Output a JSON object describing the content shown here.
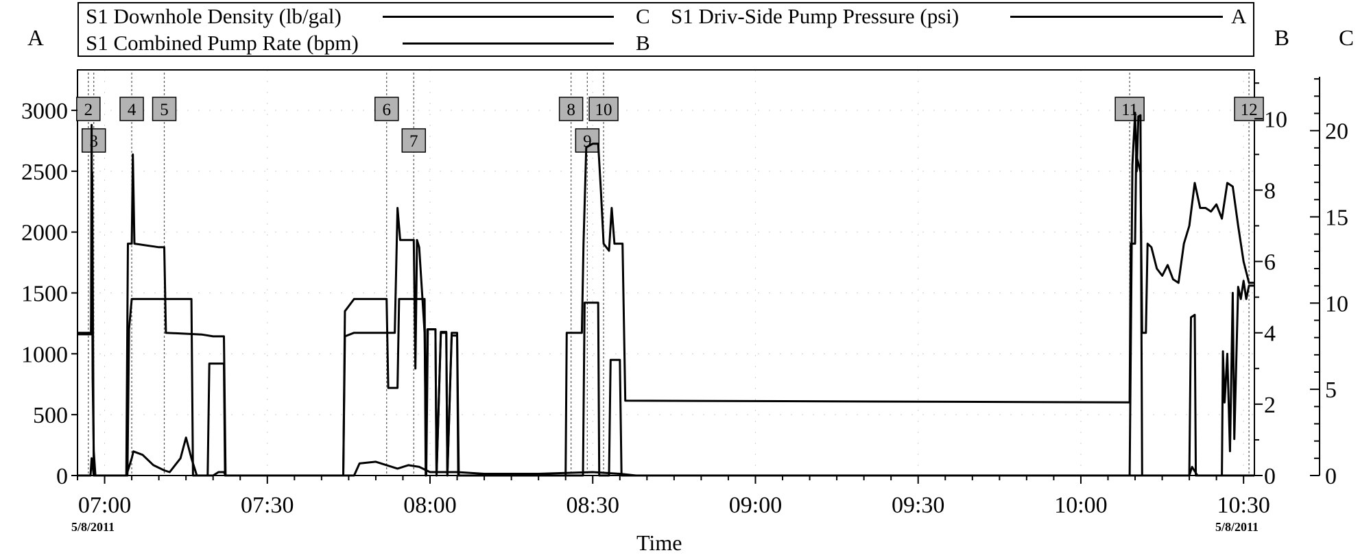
{
  "legend": {
    "items": [
      {
        "label": "S1 Downhole Density (lb/gal)",
        "axis": "C"
      },
      {
        "label": "S1 Combined Pump Rate (bpm)",
        "axis": "B"
      },
      {
        "label": "S1 Driv-Side Pump Pressure (psi)",
        "axis": "A"
      }
    ]
  },
  "axis_letters": {
    "left": "A",
    "right_b": "B",
    "right_c": "C"
  },
  "x_axis": {
    "title": "Time",
    "start_date": "5/8/2011",
    "end_date": "5/8/2011"
  },
  "chart_data": {
    "type": "line",
    "xlabel": "Time",
    "x_ticks": [
      "07:00",
      "07:30",
      "08:00",
      "08:30",
      "09:00",
      "09:30",
      "10:00",
      "10:30"
    ],
    "x_range": [
      "06:55",
      "10:32"
    ],
    "axes": {
      "A": {
        "ylim": [
          0,
          3400
        ],
        "ticks": [
          0,
          500,
          1000,
          1500,
          2000,
          2500,
          3000
        ]
      },
      "B": {
        "ylim": [
          0,
          11.6
        ],
        "ticks": [
          0,
          2,
          4,
          6,
          8,
          10
        ]
      },
      "C": {
        "ylim": [
          0,
          24
        ],
        "ticks": [
          0,
          5,
          10,
          15,
          20
        ]
      }
    },
    "markers": [
      {
        "label": "2",
        "time": "06:57"
      },
      {
        "label": "3",
        "time": "06:58"
      },
      {
        "label": "4",
        "time": "07:05"
      },
      {
        "label": "5",
        "time": "07:11"
      },
      {
        "label": "6",
        "time": "07:52"
      },
      {
        "label": "7",
        "time": "07:57"
      },
      {
        "label": "8",
        "time": "08:26"
      },
      {
        "label": "9",
        "time": "08:29"
      },
      {
        "label": "10",
        "time": "08:32"
      },
      {
        "label": "11",
        "time": "10:09"
      },
      {
        "label": "12",
        "time": "10:31"
      }
    ],
    "series": [
      {
        "name": "S1 Driv-Side Pump Pressure (psi)",
        "axis": "A",
        "points": [
          [
            "06:55",
            1160
          ],
          [
            "06:57.5",
            1160
          ],
          [
            "06:57.6",
            2880
          ],
          [
            "06:57.8",
            800
          ],
          [
            "06:58",
            200
          ],
          [
            "06:58.3",
            0
          ],
          [
            "07:04.2",
            0
          ],
          [
            "07:04.5",
            1200
          ],
          [
            "07:05",
            1450
          ],
          [
            "07:05.2",
            1450
          ],
          [
            "07:10",
            1450
          ],
          [
            "07:16",
            1450
          ],
          [
            "07:16.3",
            0
          ],
          [
            "07:19",
            0
          ],
          [
            "07:19.3",
            920
          ],
          [
            "07:22",
            920
          ],
          [
            "07:22.2",
            0
          ],
          [
            "07:44",
            0
          ],
          [
            "07:44.3",
            1350
          ],
          [
            "07:46",
            1450
          ],
          [
            "07:52",
            1450
          ],
          [
            "07:52.3",
            720
          ],
          [
            "07:54",
            720
          ],
          [
            "07:54.3",
            1450
          ],
          [
            "07:59",
            1450
          ],
          [
            "07:59.2",
            0
          ],
          [
            "07:59.5",
            1200
          ],
          [
            "08:01",
            1200
          ],
          [
            "08:01.2",
            0
          ],
          [
            "08:02",
            1180
          ],
          [
            "08:03",
            1180
          ],
          [
            "08:03.2",
            0
          ],
          [
            "08:04",
            1150
          ],
          [
            "08:05",
            1150
          ],
          [
            "08:05.2",
            0
          ],
          [
            "08:26",
            0
          ],
          [
            "08:28.2",
            0
          ],
          [
            "08:28.5",
            1420
          ],
          [
            "08:31",
            1420
          ],
          [
            "08:31.2",
            0
          ],
          [
            "08:33",
            0
          ],
          [
            "08:33.3",
            950
          ],
          [
            "08:35",
            950
          ],
          [
            "08:35.3",
            0
          ],
          [
            "10:09",
            0
          ],
          [
            "10:09.5",
            2550
          ],
          [
            "10:10",
            2980
          ],
          [
            "10:10.3",
            2500
          ],
          [
            "10:10.6",
            2950
          ],
          [
            "10:11",
            2960
          ],
          [
            "10:11.3",
            0
          ],
          [
            "10:20",
            0
          ],
          [
            "10:20.3",
            1300
          ],
          [
            "10:21",
            1320
          ],
          [
            "10:21.2",
            0
          ],
          [
            "10:26",
            0
          ],
          [
            "10:26.2",
            1020
          ],
          [
            "10:26.5",
            600
          ],
          [
            "10:27",
            1000
          ],
          [
            "10:27.5",
            200
          ],
          [
            "10:28",
            1500
          ],
          [
            "10:28.3",
            300
          ],
          [
            "10:29",
            1550
          ],
          [
            "10:29.5",
            1450
          ],
          [
            "10:30",
            1600
          ],
          [
            "10:30.5",
            1450
          ],
          [
            "10:31",
            1560
          ],
          [
            "10:32",
            1560
          ]
        ]
      },
      {
        "name": "S1 Combined Pump Rate (bpm)",
        "axis": "B",
        "points": [
          [
            "06:55",
            4.0
          ],
          [
            "06:57.5",
            4.0
          ],
          [
            "06:57.7",
            8.5
          ],
          [
            "06:58",
            0
          ],
          [
            "06:59",
            0
          ],
          [
            "07:04",
            0
          ],
          [
            "07:04.3",
            6.5
          ],
          [
            "07:05",
            6.5
          ],
          [
            "07:05.2",
            9.0
          ],
          [
            "07:05.5",
            6.5
          ],
          [
            "07:10",
            6.4
          ],
          [
            "07:11",
            6.4
          ],
          [
            "07:11.3",
            4.0
          ],
          [
            "07:18",
            3.95
          ],
          [
            "07:20",
            3.9
          ],
          [
            "07:22",
            3.9
          ],
          [
            "07:22.3",
            0
          ],
          [
            "07:44",
            0
          ],
          [
            "07:44.3",
            3.9
          ],
          [
            "07:46",
            4.0
          ],
          [
            "07:52",
            4.0
          ],
          [
            "07:52.5",
            4.0
          ],
          [
            "07:53.5",
            4.0
          ],
          [
            "07:54",
            7.5
          ],
          [
            "07:54.5",
            6.6
          ],
          [
            "07:57",
            6.6
          ],
          [
            "07:57.3",
            3.0
          ],
          [
            "07:57.6",
            6.6
          ],
          [
            "07:58",
            6.4
          ],
          [
            "07:59",
            4.0
          ],
          [
            "07:59.3",
            0
          ],
          [
            "07:59.6",
            4.1
          ],
          [
            "08:01",
            4.1
          ],
          [
            "08:01.2",
            0
          ],
          [
            "08:02",
            4.0
          ],
          [
            "08:03",
            4.0
          ],
          [
            "08:03.2",
            0
          ],
          [
            "08:04",
            4.0
          ],
          [
            "08:05",
            4.0
          ],
          [
            "08:05.3",
            0
          ],
          [
            "08:25",
            0
          ],
          [
            "08:25.2",
            4.0
          ],
          [
            "08:28",
            4.0
          ],
          [
            "08:28.3",
            6.5
          ],
          [
            "08:28.8",
            9.2
          ],
          [
            "08:30",
            9.3
          ],
          [
            "08:31",
            9.3
          ],
          [
            "08:31.5",
            8.0
          ],
          [
            "08:32",
            6.5
          ],
          [
            "08:33",
            6.3
          ],
          [
            "08:33.5",
            7.5
          ],
          [
            "08:34",
            6.5
          ],
          [
            "08:34.5",
            6.5
          ],
          [
            "08:35.5",
            6.5
          ],
          [
            "08:36",
            2.1
          ],
          [
            "10:09",
            2.05
          ],
          [
            "10:09.2",
            6.5
          ],
          [
            "10:10",
            6.5
          ],
          [
            "10:10.2",
            9.0
          ],
          [
            "10:11",
            8.5
          ],
          [
            "10:11.3",
            4.0
          ],
          [
            "10:12",
            4.0
          ],
          [
            "10:12.3",
            6.5
          ],
          [
            "10:13",
            6.4
          ],
          [
            "10:14",
            5.8
          ],
          [
            "10:15",
            5.6
          ],
          [
            "10:16",
            5.9
          ],
          [
            "10:17",
            5.5
          ],
          [
            "10:18",
            5.4
          ],
          [
            "10:19",
            6.5
          ],
          [
            "10:20",
            7.0
          ],
          [
            "10:21",
            8.2
          ],
          [
            "10:22",
            7.5
          ],
          [
            "10:23",
            7.5
          ],
          [
            "10:24",
            7.4
          ],
          [
            "10:25",
            7.6
          ],
          [
            "10:26",
            7.2
          ],
          [
            "10:27",
            8.2
          ],
          [
            "10:28",
            8.1
          ],
          [
            "10:29",
            7.0
          ],
          [
            "10:30",
            6.0
          ],
          [
            "10:31",
            5.4
          ],
          [
            "10:32",
            5.4
          ]
        ]
      },
      {
        "name": "S1 Downhole Density (lb/gal)",
        "axis": "C",
        "points": [
          [
            "06:55",
            0
          ],
          [
            "06:57.4",
            0
          ],
          [
            "06:57.6",
            1.0
          ],
          [
            "06:58",
            0
          ],
          [
            "07:04",
            0
          ],
          [
            "07:05",
            1.0
          ],
          [
            "07:05.3",
            1.4
          ],
          [
            "07:07",
            1.2
          ],
          [
            "07:09",
            0.6
          ],
          [
            "07:11",
            0.3
          ],
          [
            "07:12",
            0.2
          ],
          [
            "07:14",
            1.0
          ],
          [
            "07:15",
            2.2
          ],
          [
            "07:16",
            1.0
          ],
          [
            "07:17",
            0
          ],
          [
            "07:20",
            0
          ],
          [
            "07:21",
            0.2
          ],
          [
            "07:22",
            0.2
          ],
          [
            "07:22.3",
            0
          ],
          [
            "07:46",
            0
          ],
          [
            "07:47",
            0.7
          ],
          [
            "07:50",
            0.8
          ],
          [
            "07:52",
            0.6
          ],
          [
            "07:54",
            0.4
          ],
          [
            "07:56",
            0.6
          ],
          [
            "07:58",
            0.5
          ],
          [
            "08:00",
            0.2
          ],
          [
            "08:05",
            0.2
          ],
          [
            "08:10",
            0.1
          ],
          [
            "08:20",
            0.1
          ],
          [
            "08:30",
            0.2
          ],
          [
            "08:35",
            0.1
          ],
          [
            "08:38",
            0
          ],
          [
            "10:20",
            0
          ],
          [
            "10:20.5",
            0.5
          ],
          [
            "10:21.5",
            0
          ],
          [
            "10:30",
            0
          ],
          [
            "10:32",
            0
          ]
        ]
      }
    ]
  }
}
